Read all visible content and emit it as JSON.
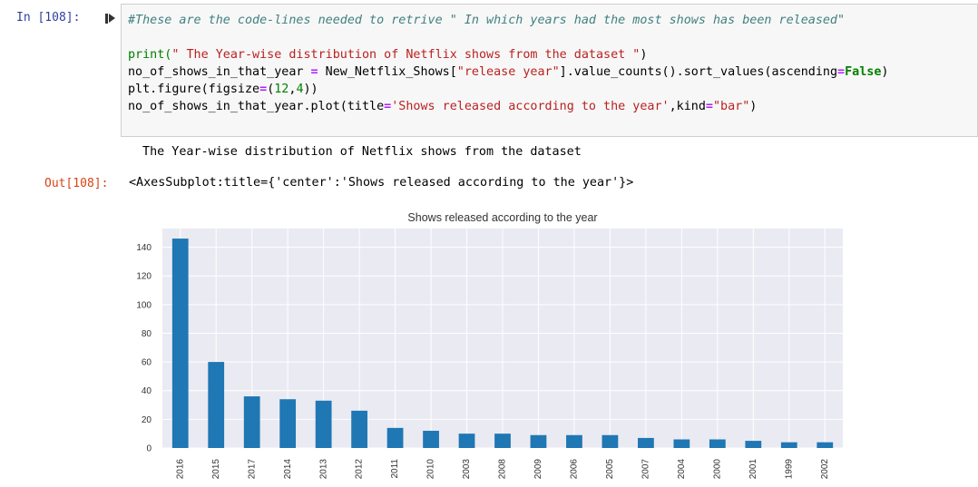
{
  "cell": {
    "in_prompt": "In [108]:",
    "out_prompt": "Out[108]:",
    "code": {
      "comment": "#These are the code-lines needed to retrive \" In which years had the most shows has been released\"",
      "l2_a": "print(",
      "l2_str": "\" The Year-wise distribution of Netflix shows from the dataset \"",
      "l2_b": ")",
      "l3_a": "no_of_shows_in_that_year ",
      "l3_eq": "=",
      "l3_b": " New_Netflix_Shows[",
      "l3_str": "\"release year\"",
      "l3_c": "].value_counts().sort_values(ascending",
      "l3_eq2": "=",
      "l3_kw": "False",
      "l3_d": ")",
      "l4_a": "plt.figure(figsize",
      "l4_eq": "=",
      "l4_b": "(",
      "l4_n1": "12",
      "l4_c": ",",
      "l4_n2": "4",
      "l4_d": "))",
      "l5_a": "no_of_shows_in_that_year.plot(title",
      "l5_eq": "=",
      "l5_str": "'Shows released according to the year'",
      "l5_b": ",kind",
      "l5_eq2": "=",
      "l5_str2": "\"bar\"",
      "l5_c": ")"
    },
    "stdout": " The Year-wise distribution of Netflix shows from the dataset ",
    "out_repr": "<AxesSubplot:title={'center':'Shows released according to the year'}>"
  },
  "chart_data": {
    "type": "bar",
    "title": "Shows released according to the year",
    "xlabel": "",
    "ylabel": "",
    "categories": [
      "2016",
      "2015",
      "2017",
      "2014",
      "2013",
      "2012",
      "2011",
      "2010",
      "2003",
      "2008",
      "2009",
      "2006",
      "2005",
      "2007",
      "2004",
      "2000",
      "2001",
      "1999",
      "2002"
    ],
    "values": [
      146,
      60,
      36,
      34,
      33,
      26,
      14,
      12,
      10,
      10,
      9,
      9,
      9,
      7,
      6,
      6,
      5,
      4,
      4
    ],
    "ylim": [
      0,
      153
    ],
    "yticks": [
      0,
      20,
      40,
      60,
      80,
      100,
      120,
      140
    ],
    "grid": true,
    "bar_color": "#1f77b4",
    "plot_bg": "#eaeaf2",
    "grid_color": "#ffffff"
  }
}
